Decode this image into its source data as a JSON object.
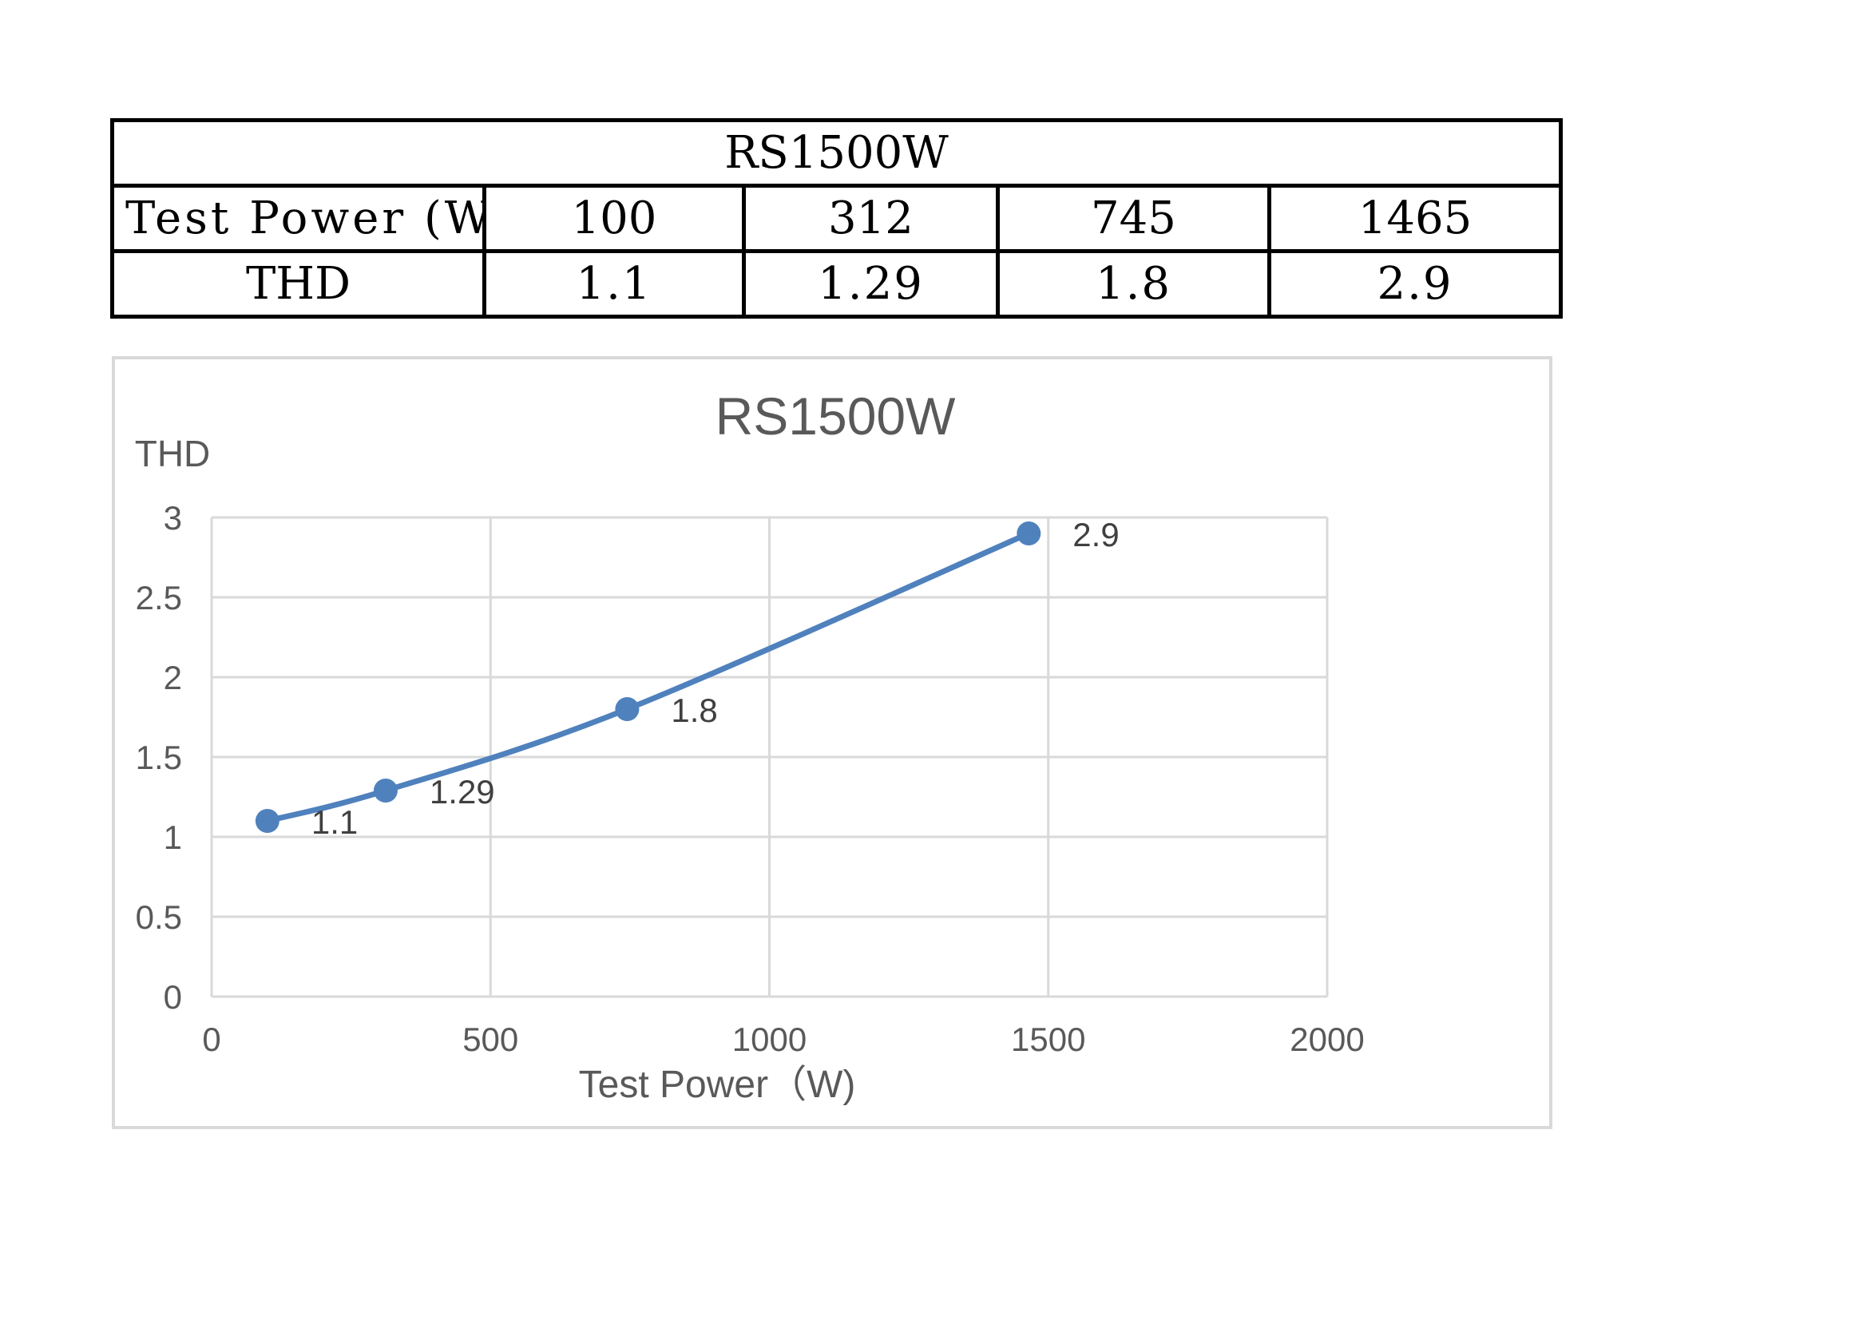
{
  "table": {
    "title": "RS1500W",
    "row_power": {
      "header": "Test Power (W)",
      "values": [
        "100",
        "312",
        "745",
        "1465"
      ]
    },
    "row_thd": {
      "header": "THD",
      "values": [
        "1.1",
        "1.29",
        "1.8",
        "2.9"
      ]
    }
  },
  "chart_data": {
    "type": "scatter",
    "title": "RS1500W",
    "xlabel": "Test Power（W)",
    "ylabel": "THD",
    "xlim": [
      0,
      2000
    ],
    "ylim": [
      0,
      3
    ],
    "x_ticks": [
      0,
      500,
      1000,
      1500,
      2000
    ],
    "y_ticks": [
      0,
      0.5,
      1,
      1.5,
      2,
      2.5,
      3
    ],
    "grid": true,
    "smooth_line": true,
    "series": [
      {
        "x": [
          100,
          312,
          745,
          1465
        ],
        "y": [
          1.1,
          1.29,
          1.8,
          2.9
        ],
        "data_labels": [
          "1.1",
          "1.29",
          "1.8",
          "2.9"
        ],
        "color": "#4f81bd"
      }
    ],
    "colors": {
      "grid": "#d9d9d9",
      "text": "#595959",
      "frame": "#d9d9d9"
    }
  }
}
